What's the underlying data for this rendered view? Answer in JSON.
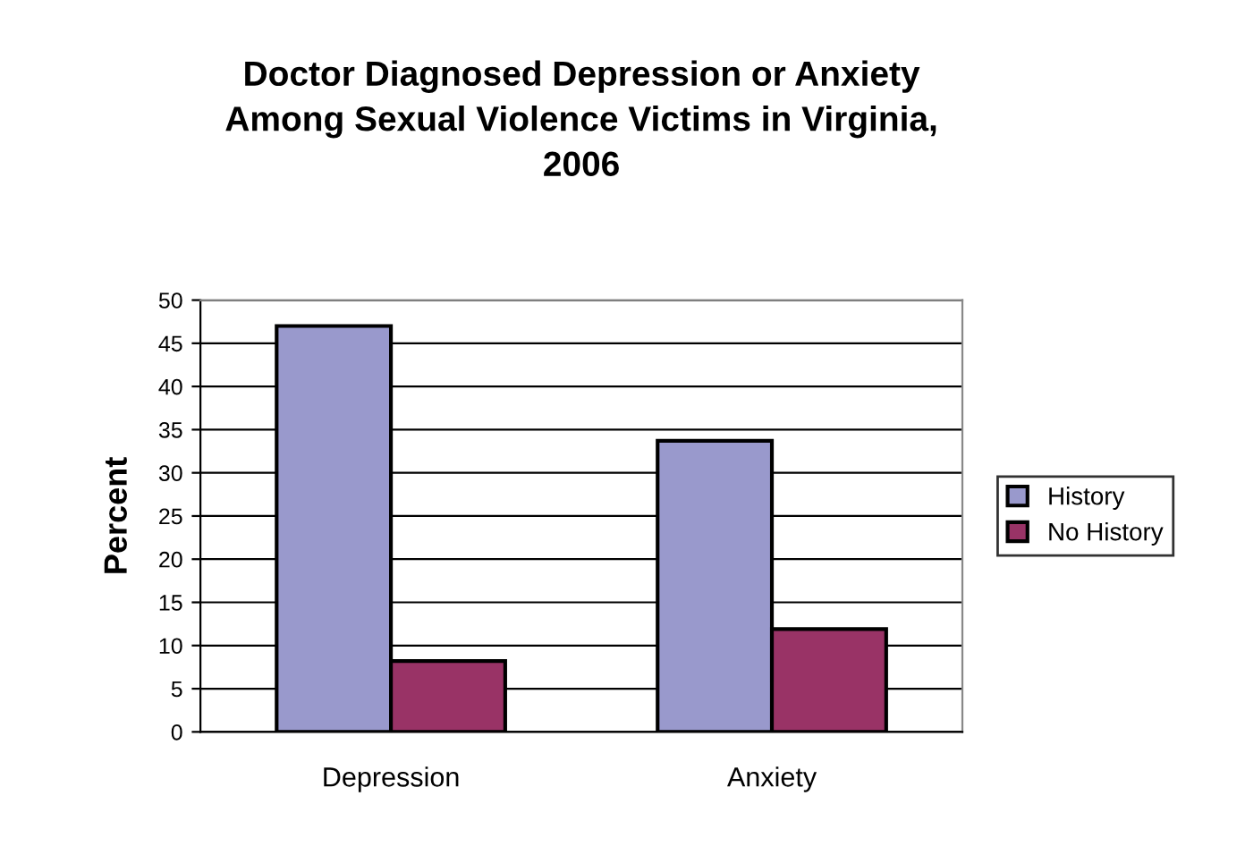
{
  "chart_data": {
    "type": "bar",
    "title": "Doctor Diagnosed Depression or Anxiety\nAmong Sexual Violence Victims in Virginia,\n2006",
    "ylabel": "Percent",
    "categories": [
      "Depression",
      "Anxiety"
    ],
    "series": [
      {
        "name": "History",
        "color": "#9999cc",
        "values": [
          47.0,
          33.7
        ]
      },
      {
        "name": "No History",
        "color": "#993366",
        "values": [
          8.2,
          11.9
        ]
      }
    ],
    "ylim": [
      0,
      50
    ],
    "yticks": [
      0,
      5,
      10,
      15,
      20,
      25,
      30,
      35,
      40,
      45,
      50
    ],
    "grid": "y",
    "legend": "right"
  }
}
